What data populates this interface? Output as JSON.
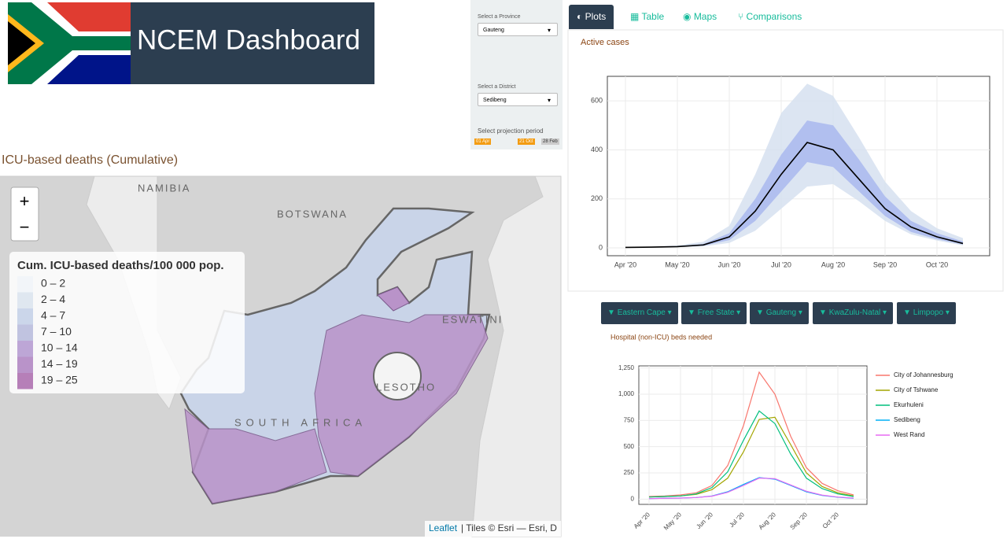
{
  "header": {
    "title": "NCEM Dashboard"
  },
  "sidebar": {
    "province_label": "Select a Province",
    "province": "Gauteng",
    "district_label": "Select a District",
    "district": "Sedibeng",
    "period_label": "Select projection period",
    "period_start": "01 Apr",
    "period_end": "21 Oct",
    "period_max": "28 Feb"
  },
  "tabs": [
    "Plots",
    "Table",
    "Maps",
    "Comparisons"
  ],
  "province_buttons": [
    "Eastern Cape",
    "Free State",
    "Gauteng",
    "KwaZulu-Natal",
    "Limpopo"
  ],
  "map": {
    "title": "ICU-based deaths (Cumulative)",
    "labels": [
      "NAMIBIA",
      "BOTSWANA",
      "SOUTH AFRICA",
      "LESOTHO",
      "ESWATINI"
    ],
    "zoom_in": "+",
    "zoom_out": "−",
    "legend": {
      "title": "Cum. ICU-based deaths/100 000 pop.",
      "entries": [
        {
          "label": "0 – 2",
          "color": "#f2f5f9"
        },
        {
          "label": "2 – 4",
          "color": "#dfe7f0"
        },
        {
          "label": "4 – 7",
          "color": "#cbd6ea"
        },
        {
          "label": "7 – 10",
          "color": "#c0c3e0"
        },
        {
          "label": "10 – 14",
          "color": "#bda6d6"
        },
        {
          "label": "14 – 19",
          "color": "#b993c9"
        },
        {
          "label": "19 – 25",
          "color": "#b67fb8"
        }
      ]
    },
    "attribution_link": "Leaflet",
    "attribution": "| Tiles © Esri — Esri, D"
  },
  "chart_data": [
    {
      "type": "band-line",
      "title": "Active cases",
      "color": "#000000",
      "categories": [
        "Apr '20",
        null,
        "May '20",
        null,
        "Jun '20",
        null,
        "Jul '20",
        null,
        "Aug '20",
        null,
        "Sep '20",
        null,
        "Oct '20",
        null
      ],
      "values": [
        2,
        3,
        5,
        12,
        45,
        150,
        300,
        430,
        400,
        280,
        160,
        85,
        45,
        18
      ],
      "bands": [
        {
          "color": "#d6e0f0",
          "upper": [
            3,
            5,
            10,
            25,
            90,
            300,
            550,
            670,
            620,
            450,
            270,
            150,
            80,
            40
          ],
          "lower": [
            1,
            2,
            3,
            6,
            20,
            70,
            160,
            250,
            260,
            190,
            110,
            55,
            30,
            10
          ]
        },
        {
          "color": "#a9b8ee",
          "upper": [
            2,
            4,
            7,
            16,
            60,
            200,
            380,
            520,
            500,
            360,
            210,
            110,
            60,
            26
          ],
          "lower": [
            1,
            2,
            4,
            9,
            32,
            110,
            230,
            350,
            330,
            230,
            130,
            65,
            35,
            14
          ]
        }
      ],
      "ylim": [
        -32,
        700
      ],
      "yticks": [
        0,
        200,
        400,
        600
      ],
      "grid": true
    },
    {
      "type": "line",
      "title": "Hospital (non-ICU) beds needed",
      "categories": [
        "Apr '20",
        null,
        "May '20",
        null,
        "Jun '20",
        null,
        "Jul '20",
        null,
        "Aug '20",
        null,
        "Sep '20",
        null,
        "Oct '20",
        null
      ],
      "series": [
        {
          "name": "City of Johannesburg",
          "color": "#f8766d",
          "values": [
            25,
            30,
            40,
            60,
            130,
            320,
            700,
            1210,
            1000,
            600,
            300,
            150,
            80,
            40
          ]
        },
        {
          "name": "City of Tshwane",
          "color": "#a3a500",
          "values": [
            20,
            25,
            30,
            45,
            90,
            200,
            450,
            760,
            780,
            520,
            250,
            120,
            60,
            30
          ]
        },
        {
          "name": "Ekurhuleni",
          "color": "#00bf7d",
          "values": [
            20,
            25,
            30,
            50,
            110,
            260,
            560,
            840,
            720,
            430,
            200,
            100,
            50,
            25
          ]
        },
        {
          "name": "Sedibeng",
          "color": "#00b0f6",
          "values": [
            5,
            8,
            10,
            15,
            30,
            70,
            140,
            205,
            190,
            130,
            70,
            35,
            18,
            8
          ]
        },
        {
          "name": "West Rand",
          "color": "#e76bf3",
          "values": [
            5,
            8,
            10,
            15,
            28,
            65,
            130,
            200,
            195,
            135,
            75,
            38,
            20,
            10
          ]
        }
      ],
      "ylim": [
        -50,
        1270
      ],
      "yticks": [
        0,
        250,
        500,
        750,
        {
          "value": 1000,
          "label": "1,000"
        },
        {
          "value": 1250,
          "label": "1,250"
        }
      ],
      "grid": true
    }
  ]
}
